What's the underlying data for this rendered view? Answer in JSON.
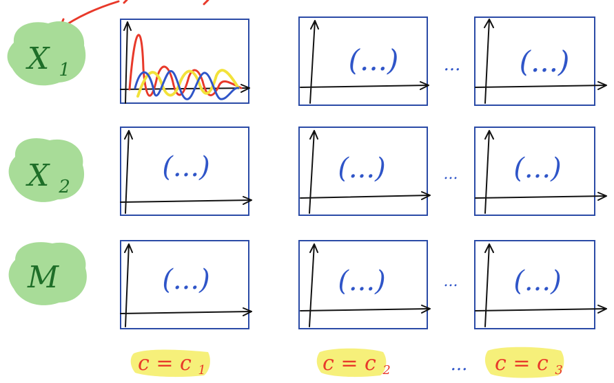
{
  "colors": {
    "panel_frame": "#2a4aa6",
    "ink_blue": "#2f55c8",
    "ink_red": "#e8392a",
    "ink_yellow": "#f2e23a",
    "ink_green": "#1e6e28",
    "blob_green": "#a8dc98",
    "highlight_yellow": "#f6f07a",
    "axis": "#111111"
  },
  "rows": [
    {
      "label": "X",
      "subscript": "1"
    },
    {
      "label": "X",
      "subscript": "2"
    },
    {
      "label": "M",
      "subscript": ""
    }
  ],
  "ellipsis": "...",
  "panel_placeholder": "(...)",
  "columns": [
    {
      "label": "c = c",
      "subscript": "1"
    },
    {
      "label": "c = c",
      "subscript": "2"
    },
    {
      "label": "c = c",
      "subscript": "3"
    }
  ],
  "icons": {
    "pointer": "red-arrow-icon",
    "line_series": "signal-curves-icon"
  }
}
